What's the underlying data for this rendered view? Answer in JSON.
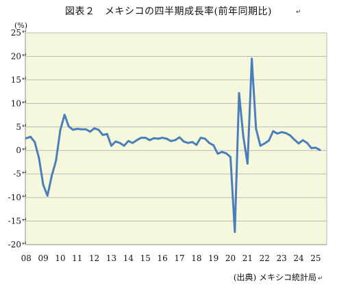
{
  "title": "図表２　メキシコの四半期成長率(前年同期比)",
  "unit_label": "(%)",
  "source_note": "(出典) メキシコ統計局",
  "colors": {
    "line": "#4a7ebb",
    "plot_bg": "#f5f8dc",
    "grid": "#b8b8b8",
    "axis": "#8c8c8c"
  },
  "chart_data": {
    "type": "line",
    "title": "図表２　メキシコの四半期成長率(前年同期比)",
    "xlabel": "",
    "ylabel": "(%)",
    "ylim": [
      -20,
      25
    ],
    "yticks": [
      25,
      20,
      15,
      10,
      5,
      0,
      -5,
      -10,
      -15,
      -20
    ],
    "x_tick_labels": [
      "08",
      "09",
      "10",
      "11",
      "12",
      "13",
      "14",
      "15",
      "16",
      "17",
      "18",
      "19",
      "20",
      "21",
      "22",
      "23",
      "24",
      "25"
    ],
    "x_label_positions": [
      2008,
      2009,
      2010,
      2011,
      2012,
      2013,
      2014,
      2015,
      2016,
      2017,
      2018,
      2019,
      2020,
      2021,
      2022,
      2023,
      2024,
      2025
    ],
    "grid": true,
    "legend": "none",
    "x": [
      2008.0,
      2008.25,
      2008.5,
      2008.75,
      2009.0,
      2009.25,
      2009.5,
      2009.75,
      2010.0,
      2010.25,
      2010.5,
      2010.75,
      2011.0,
      2011.25,
      2011.5,
      2011.75,
      2012.0,
      2012.25,
      2012.5,
      2012.75,
      2013.0,
      2013.25,
      2013.5,
      2013.75,
      2014.0,
      2014.25,
      2014.5,
      2014.75,
      2015.0,
      2015.25,
      2015.5,
      2015.75,
      2016.0,
      2016.25,
      2016.5,
      2016.75,
      2017.0,
      2017.25,
      2017.5,
      2017.75,
      2018.0,
      2018.25,
      2018.5,
      2018.75,
      2019.0,
      2019.25,
      2019.5,
      2019.75,
      2020.0,
      2020.25,
      2020.5,
      2020.75,
      2021.0,
      2021.25,
      2021.5,
      2021.75,
      2022.0,
      2022.25,
      2022.5,
      2022.75,
      2023.0,
      2023.25,
      2023.5,
      2023.75,
      2024.0,
      2024.25,
      2024.5,
      2024.75,
      2025.0,
      2025.25
    ],
    "series": [
      {
        "values": [
          2.6,
          2.9,
          1.8,
          -1.6,
          -7.3,
          -9.6,
          -5.4,
          -2.2,
          4.3,
          7.6,
          5.1,
          4.4,
          4.6,
          4.5,
          4.5,
          4.0,
          4.7,
          4.4,
          3.3,
          3.5,
          1.0,
          1.9,
          1.6,
          1.0,
          2.0,
          1.6,
          2.2,
          2.7,
          2.7,
          2.2,
          2.6,
          2.5,
          2.7,
          2.5,
          2.0,
          2.2,
          2.8,
          1.9,
          1.6,
          1.8,
          1.2,
          2.7,
          2.5,
          1.6,
          1.1,
          -0.7,
          -0.3,
          -0.6,
          -1.4,
          -17.3,
          12.2,
          3.0,
          -2.8,
          19.5,
          4.6,
          1.0,
          1.5,
          2.1,
          4.1,
          3.6,
          3.9,
          3.7,
          3.2,
          2.3,
          1.5,
          2.2,
          1.6,
          0.5,
          0.6,
          0.1
        ]
      }
    ]
  }
}
